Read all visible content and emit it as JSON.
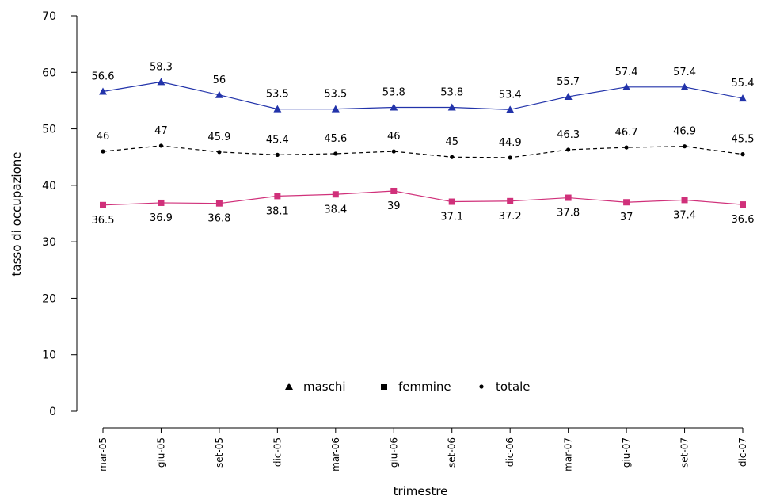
{
  "chart_data": {
    "type": "line",
    "xlabel": "trimestre",
    "ylabel": "tasso di occupazione",
    "ylim": [
      0,
      70
    ],
    "yticks": [
      0,
      10,
      20,
      30,
      40,
      50,
      60,
      70
    ],
    "categories": [
      "mar-05",
      "giu-05",
      "set-05",
      "dic-05",
      "mar-06",
      "giu-06",
      "set-06",
      "dic-06",
      "mar-07",
      "giu-07",
      "set-07",
      "dic-07"
    ],
    "grid": false,
    "legend_position": "bottom-center",
    "series": [
      {
        "name": "maschi",
        "marker": "triangle",
        "line_style": "solid",
        "color": "#2233aa",
        "values": [
          56.6,
          58.3,
          56,
          53.5,
          53.5,
          53.8,
          53.8,
          53.4,
          55.7,
          57.4,
          57.4,
          55.4
        ],
        "labels": [
          "56.6",
          "58.3",
          "56",
          "53.5",
          "53.5",
          "53.8",
          "53.8",
          "53.4",
          "55.7",
          "57.4",
          "57.4",
          "55.4"
        ]
      },
      {
        "name": "femmine",
        "marker": "square",
        "line_style": "solid",
        "color": "#d0307a",
        "values": [
          36.5,
          36.9,
          36.8,
          38.1,
          38.4,
          39,
          37.1,
          37.2,
          37.8,
          37,
          37.4,
          36.6
        ],
        "labels": [
          "36.5",
          "36.9",
          "36.8",
          "38.1",
          "38.4",
          "39",
          "37.1",
          "37.2",
          "37.8",
          "37",
          "37.4",
          "36.6"
        ]
      },
      {
        "name": "totale",
        "marker": "dot",
        "line_style": "dashed",
        "color": "#000000",
        "values": [
          46,
          47,
          45.9,
          45.4,
          45.6,
          46,
          45,
          44.9,
          46.3,
          46.7,
          46.9,
          45.5
        ],
        "labels": [
          "46",
          "47",
          "45.9",
          "45.4",
          "45.6",
          "46",
          "45",
          "44.9",
          "46.3",
          "46.7",
          "46.9",
          "45.5"
        ]
      }
    ]
  }
}
